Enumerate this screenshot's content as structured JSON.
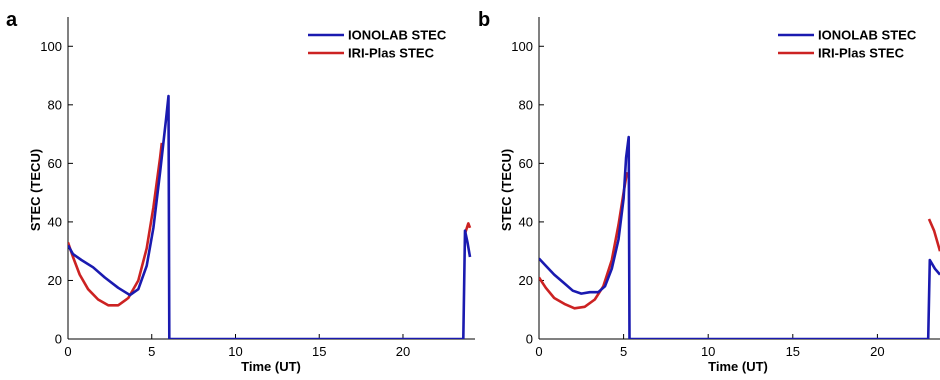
{
  "chart_data": [
    {
      "panel": "a",
      "type": "line",
      "xlabel": "Time (UT)",
      "ylabel": "STEC (TECU)",
      "xlim": [
        0,
        24.3
      ],
      "ylim": [
        0,
        110
      ],
      "xticks": [
        "0",
        "5",
        "10",
        "15",
        "20"
      ],
      "yticks": [
        "0",
        "20",
        "40",
        "60",
        "80",
        "100"
      ],
      "legend_position": "top-right",
      "series": [
        {
          "name": "IONOLAB STEC",
          "color": "#1a1ab0",
          "points": [
            [
              0,
              32
            ],
            [
              0.3,
              29
            ],
            [
              0.8,
              27
            ],
            [
              1.5,
              24.5
            ],
            [
              2.2,
              21
            ],
            [
              3,
              17.5
            ],
            [
              3.7,
              15
            ],
            [
              4.2,
              17
            ],
            [
              4.7,
              25
            ],
            [
              5.1,
              38
            ],
            [
              5.5,
              57
            ],
            [
              5.85,
              75
            ],
            [
              6.0,
              83
            ],
            [
              6.05,
              0
            ],
            [
              23.6,
              0
            ],
            [
              23.7,
              37
            ],
            [
              23.85,
              33
            ],
            [
              24.0,
              28
            ]
          ]
        },
        {
          "name": "IRI-Plas STEC",
          "color": "#cc2222",
          "points": [
            [
              0,
              33
            ],
            [
              0.3,
              28
            ],
            [
              0.7,
              22
            ],
            [
              1.2,
              17
            ],
            [
              1.8,
              13.5
            ],
            [
              2.4,
              11.5
            ],
            [
              3,
              11.5
            ],
            [
              3.6,
              14
            ],
            [
              4.2,
              20
            ],
            [
              4.7,
              31
            ],
            [
              5.1,
              45
            ],
            [
              5.5,
              62
            ],
            [
              5.6,
              67
            ],
            [
              23.7,
              36
            ],
            [
              23.9,
              39.5
            ],
            [
              24.0,
              38
            ]
          ]
        }
      ]
    },
    {
      "panel": "b",
      "type": "line",
      "xlabel": "Time (UT)",
      "ylabel": "STEC (TECU)",
      "xlim": [
        0,
        23.7
      ],
      "ylim": [
        0,
        110
      ],
      "xticks": [
        "0",
        "5",
        "10",
        "15",
        "20"
      ],
      "yticks": [
        "0",
        "20",
        "40",
        "60",
        "80",
        "100"
      ],
      "legend_position": "top-right",
      "series": [
        {
          "name": "IONOLAB STEC",
          "color": "#1a1ab0",
          "points": [
            [
              0,
              27.5
            ],
            [
              0.4,
              25
            ],
            [
              0.9,
              22
            ],
            [
              1.5,
              19
            ],
            [
              2,
              16.5
            ],
            [
              2.5,
              15.5
            ],
            [
              3,
              16
            ],
            [
              3.5,
              16
            ],
            [
              3.9,
              18
            ],
            [
              4.3,
              24
            ],
            [
              4.7,
              34
            ],
            [
              5.0,
              48
            ],
            [
              5.15,
              62
            ],
            [
              5.3,
              69
            ],
            [
              5.35,
              0
            ],
            [
              23.0,
              0
            ],
            [
              23.1,
              27
            ],
            [
              23.4,
              24
            ],
            [
              23.7,
              22
            ]
          ]
        },
        {
          "name": "IRI-Plas STEC",
          "color": "#cc2222",
          "points": [
            [
              0,
              21
            ],
            [
              0.4,
              17.5
            ],
            [
              0.9,
              14
            ],
            [
              1.5,
              12
            ],
            [
              2.1,
              10.5
            ],
            [
              2.7,
              11
            ],
            [
              3.3,
              13.5
            ],
            [
              3.8,
              18
            ],
            [
              4.3,
              27
            ],
            [
              4.7,
              39
            ],
            [
              5.0,
              50
            ],
            [
              5.2,
              57
            ],
            [
              23.05,
              41
            ],
            [
              23.35,
              37
            ],
            [
              23.7,
              30
            ]
          ]
        }
      ]
    }
  ]
}
